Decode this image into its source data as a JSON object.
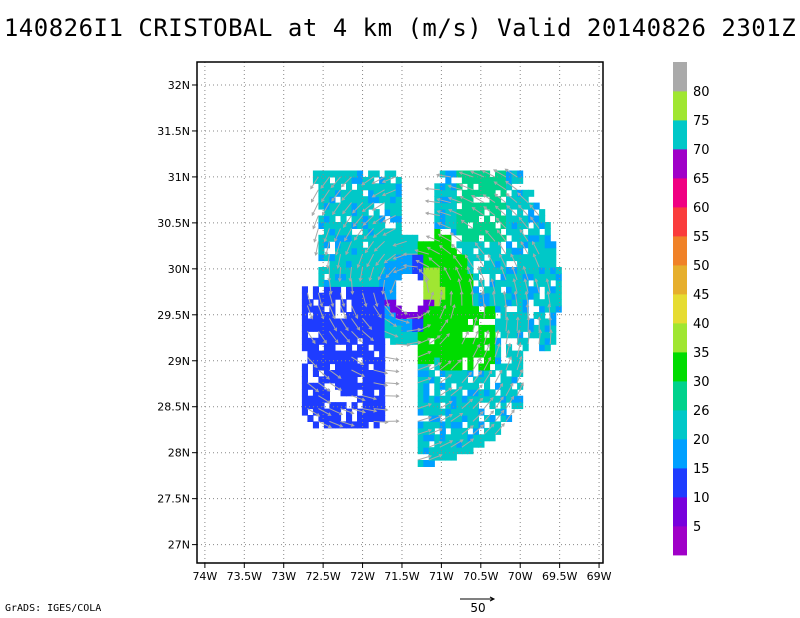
{
  "title": "140826I1 CRISTOBAL at 4 km (m/s) Valid 20140826 2301Z",
  "credit": "GrADS: IGES/COLA",
  "vector_reference": {
    "label": "50",
    "magnitude": 50
  },
  "chart_data": {
    "type": "heatmap",
    "title": "140826I1 CRISTOBAL at 4 km (m/s) Valid 20140826 2301Z",
    "x_axis": {
      "range": [
        -74.1,
        -68.95
      ],
      "ticks": [
        -74,
        -73.5,
        -73,
        -72.5,
        -72,
        -71.5,
        -71,
        -70.5,
        -70,
        -69.5,
        -69
      ],
      "tick_labels": [
        "74W",
        "73.5W",
        "73W",
        "72.5W",
        "72W",
        "71.5W",
        "71W",
        "70.5W",
        "70W",
        "69.5W",
        "69W"
      ]
    },
    "y_axis": {
      "range": [
        26.8,
        32.25
      ],
      "ticks": [
        27,
        27.5,
        28,
        28.5,
        29,
        29.5,
        30,
        30.5,
        31,
        31.5,
        32
      ],
      "tick_labels": [
        "27N",
        "27.5N",
        "28N",
        "28.5N",
        "29N",
        "29.5N",
        "30N",
        "30.5N",
        "31N",
        "31.5N",
        "32N"
      ]
    },
    "grid": true,
    "storm_center": {
      "lon": -71.4,
      "lat": 29.75
    },
    "colorbar": {
      "labels": [
        "5",
        "10",
        "15",
        "20",
        "26",
        "30",
        "35",
        "40",
        "45",
        "50",
        "55",
        "60",
        "65",
        "70",
        "75",
        "80"
      ],
      "colors": [
        "#a000c8",
        "#7800dc",
        "#1e3cff",
        "#00a0ff",
        "#00c8c8",
        "#00d28c",
        "#00dc00",
        "#a0e632",
        "#e6dc32",
        "#e6af2d",
        "#f08228",
        "#fa3c3c",
        "#f00082",
        "#a000c8",
        "#00c8c8",
        "#a0e632",
        "#aaaaaa"
      ],
      "placement": "right"
    }
  }
}
